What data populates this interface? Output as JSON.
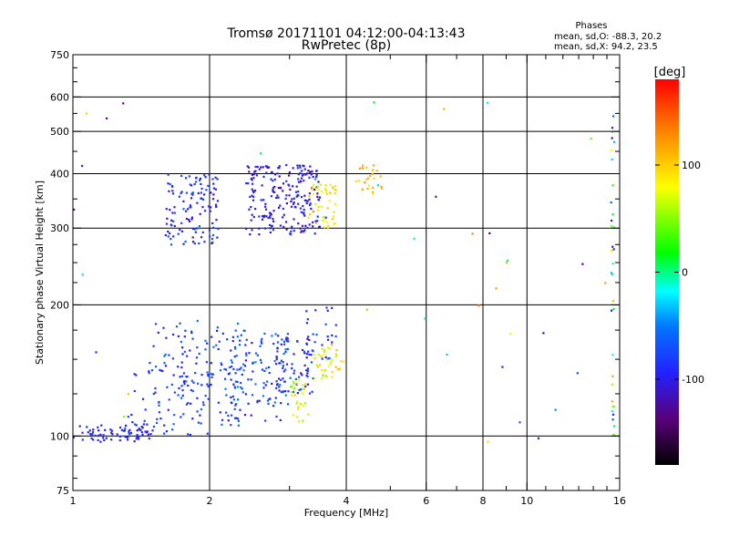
{
  "chart_data": {
    "type": "scatter",
    "title": "Tromsø 20171101 04:12:00-04:13:43",
    "subtitle": "RwPretec (8p)",
    "xlabel": "Frequency [MHz]",
    "ylabel": "Stationary phase Virtual Height [km]",
    "x_scale": "log",
    "y_scale": "log",
    "xlim": [
      1,
      16
    ],
    "ylim": [
      75,
      750
    ],
    "x_ticks": [
      1,
      2,
      4,
      6,
      8,
      10,
      16
    ],
    "x_tick_labels": [
      "1",
      "2",
      "4",
      "6",
      "8",
      "10",
      "16"
    ],
    "y_ticks": [
      75,
      100,
      200,
      300,
      400,
      500,
      600,
      750
    ],
    "y_tick_labels": [
      "75",
      "100",
      "200",
      "300",
      "400",
      "500",
      "600",
      "750"
    ],
    "x_grid": [
      1,
      2,
      4,
      6,
      8,
      10,
      16
    ],
    "y_grid": [
      100,
      200,
      300,
      400,
      500,
      600
    ],
    "grid": true,
    "stats": {
      "heading": "Phases",
      "line_o": "mean, sd,O: -88.3, 20.2",
      "line_x": "mean, sd,X:  94.2, 23.5"
    },
    "colorbar": {
      "label": "[deg]",
      "range": [
        -180,
        180
      ],
      "ticks": [
        100,
        0,
        -100
      ],
      "tick_labels": [
        "100",
        "0",
        "-100"
      ]
    },
    "clusters": [
      {
        "x": [
          1.0,
          1.5
        ],
        "y": [
          97,
          106
        ],
        "phase": [
          -105,
          -85
        ],
        "n": 70
      },
      {
        "x": [
          1.3,
          2.0
        ],
        "y": [
          100,
          150
        ],
        "phase": [
          -110,
          -60
        ],
        "n": 60
      },
      {
        "x": [
          1.5,
          2.4
        ],
        "y": [
          105,
          185
        ],
        "phase": [
          -105,
          -50
        ],
        "n": 130
      },
      {
        "x": [
          2.2,
          3.0
        ],
        "y": [
          108,
          175
        ],
        "phase": [
          -110,
          -45
        ],
        "n": 110
      },
      {
        "x": [
          2.8,
          3.4
        ],
        "y": [
          125,
          170
        ],
        "phase": [
          -115,
          -60
        ],
        "n": 70
      },
      {
        "x": [
          3.0,
          3.3
        ],
        "y": [
          108,
          135
        ],
        "phase": [
          40,
          110
        ],
        "n": 30
      },
      {
        "x": [
          3.4,
          3.9
        ],
        "y": [
          135,
          160
        ],
        "phase": [
          50,
          110
        ],
        "n": 40
      },
      {
        "x": [
          3.2,
          3.8
        ],
        "y": [
          150,
          200
        ],
        "phase": [
          -110,
          -60
        ],
        "n": 25
      },
      {
        "x": [
          1.6,
          2.1
        ],
        "y": [
          275,
          400
        ],
        "phase": [
          -115,
          -60
        ],
        "n": 120
      },
      {
        "x": [
          2.4,
          3.5
        ],
        "y": [
          290,
          420
        ],
        "phase": [
          -125,
          -80
        ],
        "n": 220
      },
      {
        "x": [
          3.3,
          3.8
        ],
        "y": [
          300,
          380
        ],
        "phase": [
          60,
          110
        ],
        "n": 45
      },
      {
        "x": [
          4.2,
          4.8
        ],
        "y": [
          360,
          420
        ],
        "phase": [
          90,
          130
        ],
        "n": 25
      },
      {
        "x": [
          15.3,
          15.6
        ],
        "y": [
          100,
          550
        ],
        "phase": [
          -120,
          120
        ],
        "n": 35
      },
      {
        "x": [
          1.0,
          16.0
        ],
        "y": [
          90,
          650
        ],
        "phase": [
          -140,
          140
        ],
        "n": 45
      }
    ]
  }
}
